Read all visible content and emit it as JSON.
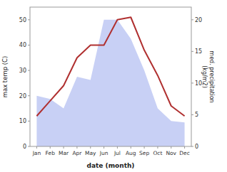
{
  "chart_data": {
    "type": "line",
    "categories": [
      "Jan",
      "Feb",
      "Mar",
      "Apr",
      "May",
      "Jun",
      "Jul",
      "Aug",
      "Sep",
      "Oct",
      "Nov",
      "Dec"
    ],
    "xlabel": "date (month)",
    "ylabel": "max temp (C)",
    "y2label": "med. precipitation\n(kg/m2)",
    "ylim": [
      0,
      55
    ],
    "yticks": [
      0,
      10,
      20,
      30,
      40,
      50
    ],
    "y2lim": [
      0,
      22
    ],
    "y2ticks": [
      0,
      5,
      10,
      15,
      20
    ],
    "series": [
      {
        "type": "area",
        "axis": "y2",
        "color": "#c8d0f5",
        "values": [
          8,
          7.5,
          6,
          11,
          10.5,
          20,
          20,
          17,
          12,
          6,
          4,
          3.8
        ]
      },
      {
        "type": "line",
        "color": "#b03030",
        "values": [
          12,
          18,
          24,
          35,
          40,
          40,
          50,
          51,
          38,
          28,
          16,
          12
        ]
      }
    ]
  }
}
